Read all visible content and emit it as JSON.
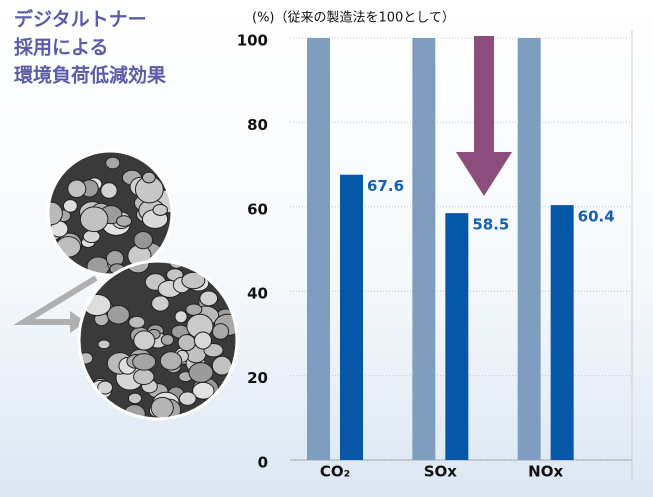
{
  "chart_data": {
    "type": "bar",
    "title": [
      "デジタルトナー",
      "採用による",
      "環境負荷低減効果"
    ],
    "ylabel": "(%)（従来の製造法を100として）",
    "categories": [
      "CO₂",
      "SOx",
      "NOx"
    ],
    "series": [
      {
        "color": "#7f9ebf",
        "values": [
          100,
          100,
          100
        ]
      },
      {
        "color": "#0757a8",
        "values": [
          67.6,
          58.5,
          60.4
        ]
      }
    ],
    "ylim": [
      0,
      100
    ],
    "yticks": [
      0,
      20,
      40,
      60,
      80,
      100
    ],
    "grid": true
  }
}
